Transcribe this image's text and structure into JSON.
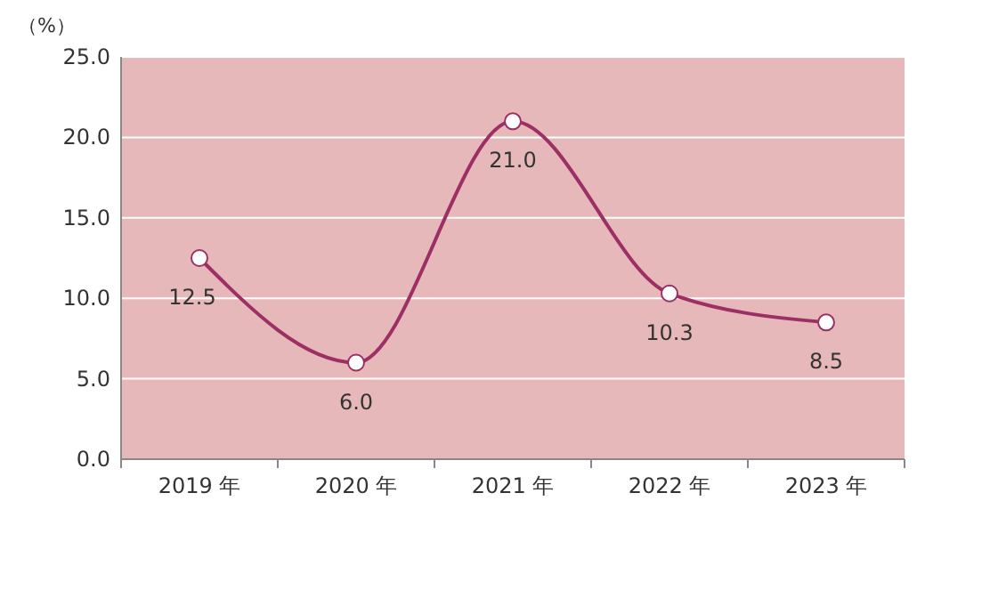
{
  "chart_data": {
    "type": "line",
    "ylabel": "（%）",
    "categories": [
      "2019 年",
      "2020 年",
      "2021 年",
      "2022 年",
      "2023 年"
    ],
    "series": [
      {
        "color": "#9c2f63",
        "values": [
          12.5,
          6.0,
          21.0,
          10.3,
          8.5
        ],
        "value_labels": [
          "12.5",
          "6.0",
          "21.0",
          "10.3",
          "8.5"
        ]
      }
    ],
    "ylim": [
      0,
      25
    ],
    "yticks": [
      {
        "value": 0,
        "label": "0.0"
      },
      {
        "value": 5,
        "label": "5.0"
      },
      {
        "value": 10,
        "label": "10.0"
      },
      {
        "value": 15,
        "label": "15.0"
      },
      {
        "value": 20,
        "label": "20.0"
      },
      {
        "value": 25,
        "label": "25.0"
      }
    ],
    "grid": "y",
    "marker": "circle"
  }
}
